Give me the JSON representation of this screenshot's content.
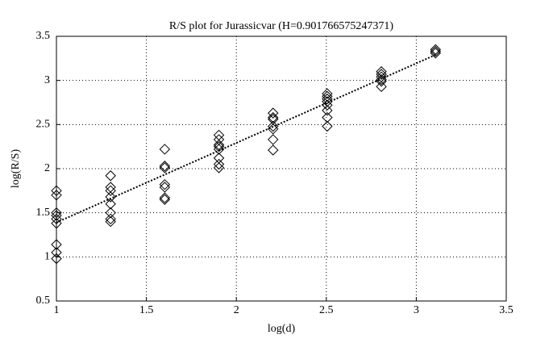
{
  "chart_data": {
    "type": "scatter",
    "title": "R/S plot for Jurassicvar (H=0.901766575247371)",
    "xlabel": "log(d)",
    "ylabel": "log(R/S)",
    "xlim": [
      1,
      3.5
    ],
    "ylim": [
      0.5,
      3.5
    ],
    "xticks": [
      1,
      1.5,
      2,
      2.5,
      3,
      3.5
    ],
    "yticks": [
      0.5,
      1,
      1.5,
      2,
      2.5,
      3,
      3.5
    ],
    "grid": true,
    "series": [
      {
        "color": "#000000",
        "marker": "diamond",
        "x": [
          1,
          1,
          1,
          1,
          1,
          1,
          1,
          1,
          1,
          1.301,
          1.301,
          1.301,
          1.301,
          1.301,
          1.301,
          1.301,
          1.301,
          1.602,
          1.602,
          1.602,
          1.602,
          1.602,
          1.602,
          1.602,
          1.903,
          1.903,
          1.903,
          1.903,
          1.903,
          1.903,
          1.903,
          1.903,
          2.204,
          2.204,
          2.204,
          2.204,
          2.204,
          2.204,
          2.204,
          2.505,
          2.505,
          2.505,
          2.505,
          2.505,
          2.505,
          2.505,
          2.505,
          2.806,
          2.806,
          2.806,
          2.806,
          2.806,
          2.806,
          3.107,
          3.107,
          3.107
        ],
        "values": [
          1.75,
          1.7,
          1.5,
          1.47,
          1.43,
          1.38,
          1.14,
          1.05,
          0.98,
          1.92,
          1.79,
          1.75,
          1.68,
          1.6,
          1.5,
          1.43,
          1.4,
          2.22,
          2.03,
          2.01,
          1.82,
          1.79,
          1.67,
          1.65,
          2.38,
          2.33,
          2.27,
          2.25,
          2.22,
          2.12,
          2.05,
          2.01,
          2.63,
          2.58,
          2.56,
          2.48,
          2.45,
          2.33,
          2.21,
          2.85,
          2.82,
          2.79,
          2.76,
          2.72,
          2.66,
          2.58,
          2.48,
          3.1,
          3.07,
          3.04,
          3.01,
          2.99,
          2.93,
          3.35,
          3.33,
          3.31
        ]
      },
      {
        "color": "#000000",
        "linestyle": "dotted",
        "x": [
          1,
          3.107
        ],
        "values": [
          1.39,
          3.29
        ]
      }
    ]
  }
}
